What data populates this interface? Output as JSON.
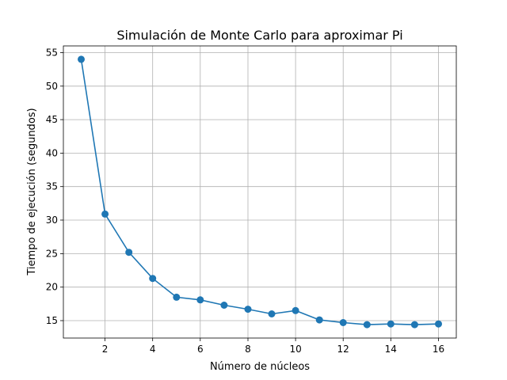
{
  "chart_data": {
    "type": "line",
    "title": "Simulación de Monte Carlo para aproximar Pi",
    "xlabel": "Número de núcleos",
    "ylabel": "Tiempo de ejecución (segundos)",
    "x": [
      1,
      2,
      3,
      4,
      5,
      6,
      7,
      8,
      9,
      10,
      11,
      12,
      13,
      14,
      15,
      16
    ],
    "series": [
      {
        "values": [
          54.0,
          30.9,
          25.2,
          21.3,
          18.5,
          18.1,
          17.3,
          16.7,
          16.0,
          16.5,
          15.1,
          14.7,
          14.4,
          14.5,
          14.4,
          14.5
        ],
        "color": "#1f77b4",
        "marker": "circle"
      }
    ],
    "xticks": [
      2,
      4,
      6,
      8,
      10,
      12,
      14,
      16
    ],
    "yticks": [
      15,
      20,
      25,
      30,
      35,
      40,
      45,
      50,
      55
    ],
    "xlim": [
      0.25,
      16.75
    ],
    "ylim": [
      12.4,
      56.0
    ],
    "grid": true
  }
}
